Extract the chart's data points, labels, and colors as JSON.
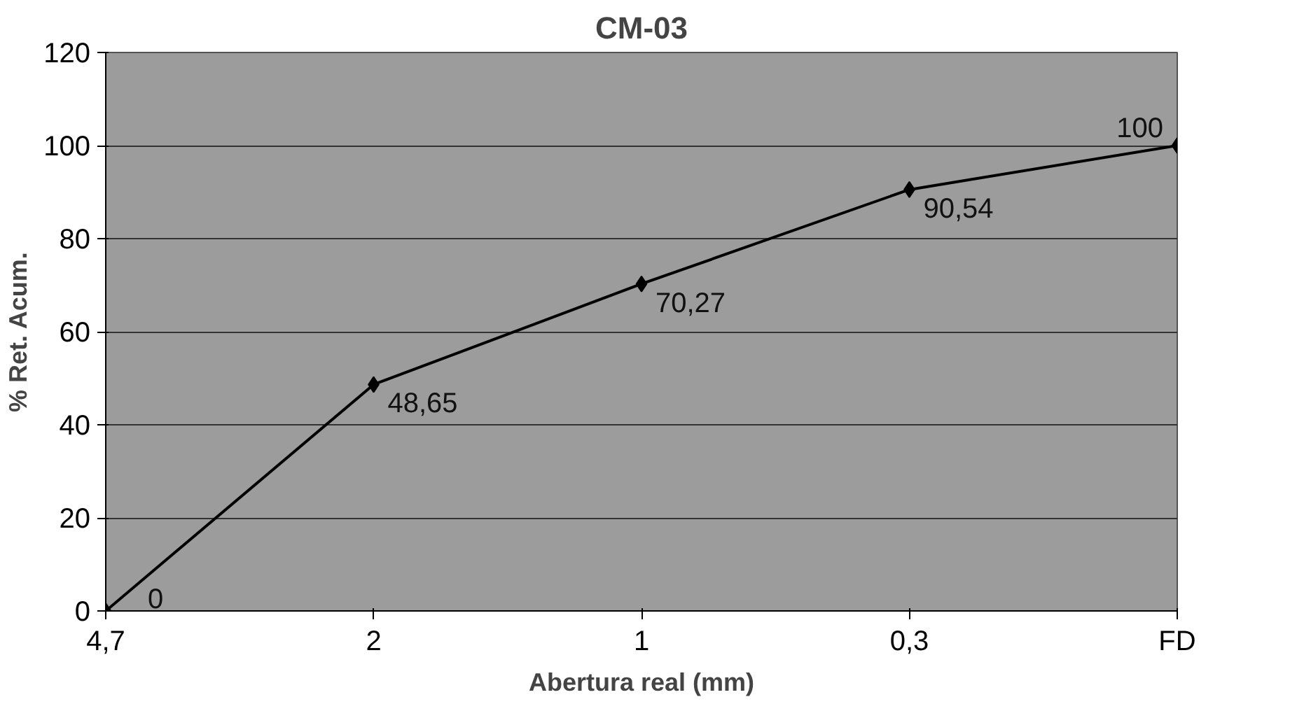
{
  "chart_data": {
    "type": "line",
    "title": "CM-03",
    "xlabel": "Abertura real (mm)",
    "ylabel": "% Ret. Acum.",
    "categories": [
      "4,7",
      "2",
      "1",
      "0,3",
      "FD"
    ],
    "series": [
      {
        "color": "#000000",
        "values": [
          0,
          48.65,
          70.27,
          90.54,
          100
        ],
        "value_labels": [
          "0",
          "48,65",
          "70,27",
          "90,54",
          "100"
        ]
      }
    ],
    "ylim": [
      0,
      120
    ],
    "yticks": [
      0,
      20,
      40,
      60,
      80,
      100,
      120
    ],
    "grid": "y",
    "marker": "diamond",
    "line_style": "solid"
  }
}
